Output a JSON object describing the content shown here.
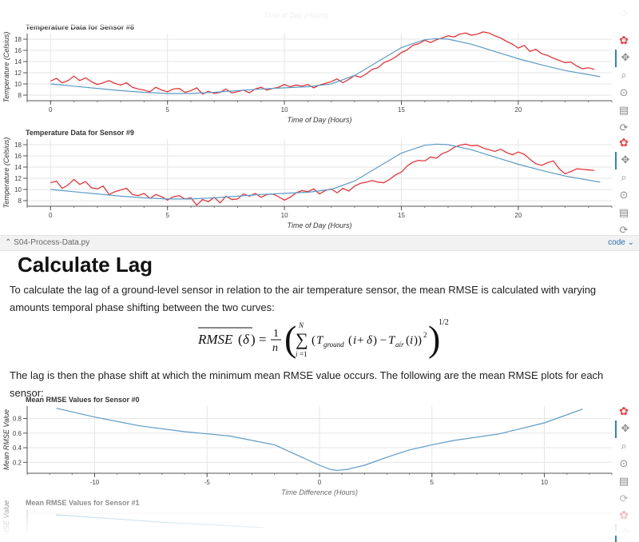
{
  "sensor_plots": [
    {
      "title": "Temperature Data for Sensor #8",
      "xlabel": "Time of Day (Hours)",
      "ylabel": "Temperature (Celsius)",
      "xticks": [
        0,
        5,
        10,
        15,
        20
      ],
      "yticks": [
        8,
        10,
        12,
        14,
        16,
        18
      ]
    },
    {
      "title": "Temperature Data for Sensor #9",
      "xlabel": "Time of Day (Hours)",
      "ylabel": "Temperature (Celsius)",
      "xticks": [
        0,
        5,
        10,
        15,
        20
      ],
      "yticks": [
        8,
        10,
        12,
        14,
        16,
        18
      ]
    }
  ],
  "top_partial_label": "Time of Day (Hours)",
  "cell": {
    "filename": "S04-Process-Data.py",
    "toggle_label": "code"
  },
  "section": {
    "heading": "Calculate Lag",
    "intro": "To calculate the lag of a ground-level sensor in relation to the air temperature sensor, the mean RMSE is calculated with varying amounts temporal phase shifting between the two curves:",
    "after": "The lag is then the phase shift at which the minimum mean RMSE value occurs. The following are the mean RMSE plots for each sensor:"
  },
  "rmse_plots": [
    {
      "title": "Mean RMSE Values for Sensor #0",
      "xlabel": "Time Difference (Hours)",
      "ylabel": "Mean RMSE Value",
      "xticks": [
        -10,
        -5,
        0,
        5,
        10
      ],
      "yticks": [
        0.2,
        0.4,
        0.6,
        0.8
      ]
    },
    {
      "title": "Mean RMSE Values for Sensor #1",
      "ylabel": "Mean RMSE Value"
    }
  ],
  "toolbar_icons": [
    "bokeh-logo-icon",
    "pan-icon",
    "box-zoom-icon",
    "wheel-zoom-icon",
    "save-icon",
    "reset-icon"
  ],
  "colors": {
    "ground": "#e8262b",
    "air": "#5b9bc7",
    "rmse": "#5b9bc7",
    "accent": "#3580c5"
  },
  "chart_data": [
    {
      "type": "line",
      "title": "Temperature Data for Sensor #8",
      "xlabel": "Time of Day (Hours)",
      "ylabel": "Temperature (Celsius)",
      "xlim": [
        -1,
        24
      ],
      "ylim": [
        7,
        19
      ],
      "series": [
        {
          "color": "#e8262b",
          "x": [
            0,
            0.25,
            0.5,
            0.75,
            1,
            1.25,
            1.5,
            1.75,
            2,
            2.25,
            2.5,
            2.75,
            3,
            3.25,
            3.5,
            3.75,
            4,
            4.25,
            4.5,
            4.75,
            5,
            5.25,
            5.5,
            5.75,
            6,
            6.25,
            6.5,
            6.75,
            7,
            7.25,
            7.5,
            7.75,
            8,
            8.25,
            8.5,
            8.75,
            9,
            9.25,
            9.5,
            9.75,
            10,
            10.25,
            10.5,
            10.75,
            11,
            11.25,
            11.5,
            11.75,
            12,
            12.25,
            12.5,
            12.75,
            13,
            13.25,
            13.5,
            13.75,
            14,
            14.25,
            14.5,
            14.75,
            15,
            15.25,
            15.5,
            15.75,
            16,
            16.25,
            16.5,
            16.75,
            17,
            17.25,
            17.5,
            17.75,
            18,
            18.25,
            18.5,
            18.75,
            19,
            19.25,
            19.5,
            19.75,
            20,
            20.25,
            20.5,
            20.75,
            21,
            21.25,
            21.5,
            21.75,
            22,
            22.25,
            22.5,
            22.75,
            23,
            23.25
          ],
          "y": [
            10.5,
            11,
            10.2,
            10.6,
            11.4,
            10.6,
            11.1,
            10.4,
            9.9,
            10.2,
            10.6,
            10.1,
            9.8,
            10.2,
            9.4,
            9.1,
            8.9,
            8.6,
            9.4,
            8.9,
            8.6,
            9.1,
            9.2,
            8.5,
            8.8,
            9.3,
            8.2,
            8.7,
            8.3,
            8.5,
            9.1,
            8.4,
            8.6,
            8.9,
            8.4,
            9.1,
            9.4,
            8.9,
            9.2,
            9.4,
            9.9,
            9.5,
            9.8,
            9.6,
            9.9,
            9.3,
            9.8,
            10.1,
            10.4,
            10.9,
            10.2,
            10.8,
            11.5,
            11.2,
            11.8,
            12.6,
            12.9,
            13.8,
            14.2,
            14.8,
            15.6,
            16.1,
            16.9,
            17.2,
            17.8,
            17.4,
            17.9,
            18.2,
            18.6,
            18.4,
            18.9,
            19.1,
            18.7,
            18.9,
            19.3,
            19.1,
            18.6,
            18.2,
            17.6,
            17.1,
            16.4,
            16.9,
            15.8,
            16.2,
            15.4,
            15.1,
            14.6,
            14.2,
            13.8,
            13.9,
            13.2,
            12.7,
            12.9,
            12.6
          ],
          "label": ""
        },
        {
          "color": "#5b9bc7",
          "x": [
            0,
            1,
            2,
            3,
            4,
            5,
            6,
            7,
            8,
            9,
            10,
            11,
            12,
            13,
            14,
            15,
            16,
            16.5,
            17,
            18,
            19,
            20,
            21,
            22,
            23.5
          ],
          "y": [
            10,
            9.6,
            9.2,
            8.8,
            8.5,
            8.3,
            8.3,
            8.5,
            8.8,
            9.1,
            9.3,
            9.5,
            10,
            11.5,
            14,
            16.5,
            17.9,
            18.1,
            18.0,
            17.1,
            15.8,
            14.5,
            13.4,
            12.4,
            11.3
          ],
          "label": ""
        }
      ]
    },
    {
      "type": "line",
      "title": "Temperature Data for Sensor #9",
      "xlabel": "Time of Day (Hours)",
      "ylabel": "Temperature (Celsius)",
      "xlim": [
        -1,
        24
      ],
      "ylim": [
        7,
        19
      ],
      "series": [
        {
          "color": "#e8262b",
          "x": [
            0,
            0.25,
            0.5,
            0.75,
            1,
            1.25,
            1.5,
            1.75,
            2,
            2.25,
            2.5,
            2.75,
            3,
            3.25,
            3.5,
            3.75,
            4,
            4.25,
            4.5,
            4.75,
            5,
            5.25,
            5.5,
            5.75,
            6,
            6.25,
            6.5,
            6.75,
            7,
            7.25,
            7.5,
            7.75,
            8,
            8.25,
            8.5,
            8.75,
            9,
            9.25,
            9.5,
            9.75,
            10,
            10.25,
            10.5,
            10.75,
            11,
            11.25,
            11.5,
            11.75,
            12,
            12.25,
            12.5,
            12.75,
            13,
            13.25,
            13.5,
            13.75,
            14,
            14.25,
            14.5,
            14.75,
            15,
            15.25,
            15.5,
            15.75,
            16,
            16.25,
            16.5,
            16.75,
            17,
            17.25,
            17.5,
            17.75,
            18,
            18.25,
            18.5,
            18.75,
            19,
            19.25,
            19.5,
            19.75,
            20,
            20.25,
            20.5,
            20.75,
            21,
            21.25,
            21.5,
            21.75,
            22,
            22.25,
            22.5,
            22.75,
            23,
            23.25
          ],
          "y": [
            11.2,
            11.5,
            10.2,
            10.8,
            11.8,
            10.9,
            11.4,
            10.3,
            10.1,
            10.6,
            9.1,
            9.6,
            9.9,
            10.2,
            9.1,
            8.9,
            9.3,
            8.4,
            9.1,
            8.7,
            8.1,
            8.7,
            8.9,
            8.3,
            8.5,
            7.2,
            8.2,
            7.8,
            8.6,
            7.6,
            8.8,
            8.2,
            8.3,
            9.2,
            8.8,
            9.3,
            8.6,
            9.1,
            9.2,
            8.7,
            8.1,
            8.6,
            9.4,
            9.8,
            9.6,
            10.1,
            9.2,
            9.8,
            10.1,
            9.4,
            10.2,
            9.7,
            10.6,
            11.1,
            11.3,
            11.6,
            11.3,
            11.2,
            11.8,
            12.6,
            13.1,
            14.2,
            14.9,
            15.2,
            15.1,
            15.8,
            15.6,
            16.4,
            16.8,
            17.5,
            17.9,
            18.1,
            17.8,
            17.9,
            17.4,
            17.1,
            16.8,
            17.2,
            16.6,
            16.2,
            16.7,
            16.3,
            15.4,
            14.6,
            14.3,
            14.8,
            15.1,
            13.7,
            12.8,
            13.2,
            13.7,
            13.6,
            13.5,
            13.4
          ],
          "label": ""
        },
        {
          "color": "#5b9bc7",
          "x": [
            0,
            1,
            2,
            3,
            4,
            5,
            6,
            7,
            8,
            9,
            10,
            11,
            12,
            13,
            14,
            15,
            16,
            16.5,
            17,
            18,
            19,
            20,
            21,
            22,
            23.5
          ],
          "y": [
            10,
            9.6,
            9.2,
            8.8,
            8.5,
            8.3,
            8.3,
            8.5,
            8.8,
            9.1,
            9.3,
            9.5,
            10,
            11.5,
            14,
            16.5,
            17.9,
            18.1,
            18.0,
            17.1,
            15.8,
            14.5,
            13.4,
            12.4,
            11.3
          ],
          "label": ""
        }
      ]
    },
    {
      "type": "line",
      "title": "Mean RMSE Values for Sensor #0",
      "xlabel": "Time Difference (Hours)",
      "ylabel": "Mean RMSE Value",
      "xlim": [
        -13,
        13
      ],
      "ylim": [
        0.05,
        0.97
      ],
      "series": [
        {
          "color": "#5b9bc7",
          "x": [
            -11.7,
            -10,
            -8,
            -6,
            -4,
            -2,
            -1,
            0,
            0.5,
            0.8,
            1.2,
            2,
            3,
            4,
            5,
            6,
            8,
            10,
            11.7
          ],
          "y": [
            0.94,
            0.82,
            0.7,
            0.62,
            0.56,
            0.44,
            0.3,
            0.16,
            0.1,
            0.09,
            0.1,
            0.16,
            0.27,
            0.37,
            0.44,
            0.5,
            0.59,
            0.74,
            0.93
          ],
          "label": ""
        }
      ]
    }
  ]
}
